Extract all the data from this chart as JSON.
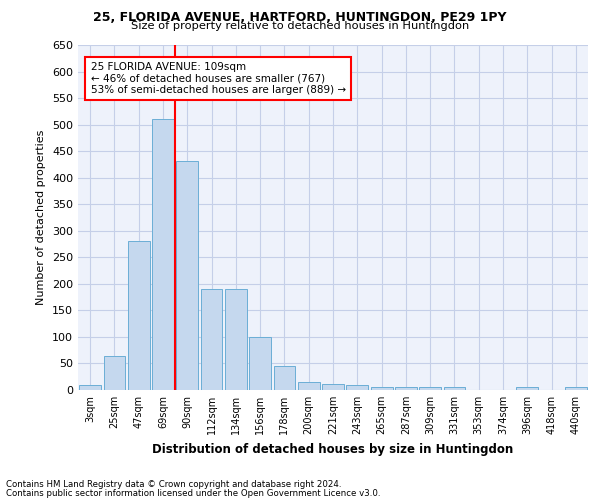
{
  "title1": "25, FLORIDA AVENUE, HARTFORD, HUNTINGDON, PE29 1PY",
  "title2": "Size of property relative to detached houses in Huntingdon",
  "xlabel": "Distribution of detached houses by size in Huntingdon",
  "ylabel": "Number of detached properties",
  "bar_labels": [
    "3sqm",
    "25sqm",
    "47sqm",
    "69sqm",
    "90sqm",
    "112sqm",
    "134sqm",
    "156sqm",
    "178sqm",
    "200sqm",
    "221sqm",
    "243sqm",
    "265sqm",
    "287sqm",
    "309sqm",
    "331sqm",
    "353sqm",
    "374sqm",
    "396sqm",
    "418sqm",
    "440sqm"
  ],
  "bar_values": [
    10,
    65,
    280,
    510,
    432,
    190,
    190,
    100,
    46,
    15,
    11,
    9,
    5,
    5,
    5,
    5,
    0,
    0,
    5,
    0,
    5
  ],
  "bar_color": "#c5d8ee",
  "bar_edgecolor": "#6baed6",
  "vline_x": 3.5,
  "vline_color": "red",
  "annotation_text": "25 FLORIDA AVENUE: 109sqm\n← 46% of detached houses are smaller (767)\n53% of semi-detached houses are larger (889) →",
  "annotation_box_color": "white",
  "annotation_box_edgecolor": "red",
  "ylim": [
    0,
    650
  ],
  "yticks": [
    0,
    50,
    100,
    150,
    200,
    250,
    300,
    350,
    400,
    450,
    500,
    550,
    600,
    650
  ],
  "footnote1": "Contains HM Land Registry data © Crown copyright and database right 2024.",
  "footnote2": "Contains public sector information licensed under the Open Government Licence v3.0.",
  "bg_color": "#eef2fb",
  "grid_color": "#c5cfe8"
}
